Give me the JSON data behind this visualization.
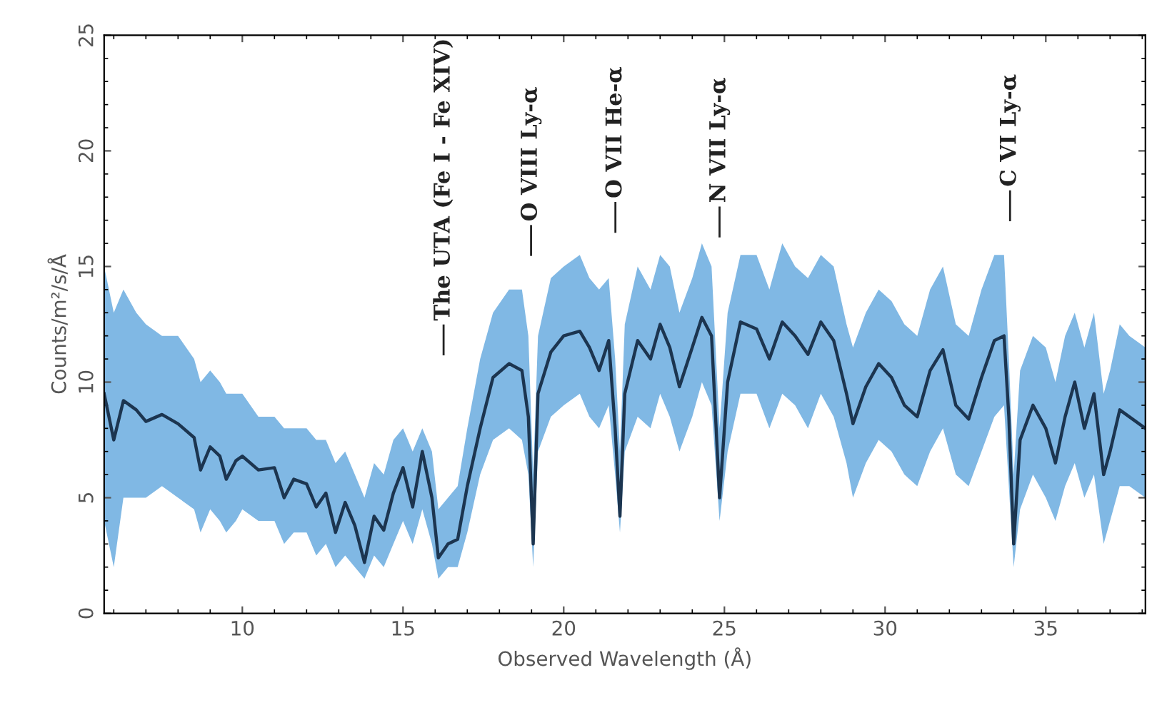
{
  "chart_data": {
    "type": "line",
    "xlabel": "Observed Wavelength (Å)",
    "ylabel": "Counts/m²/s/Å",
    "xlim": [
      5.7,
      38.1
    ],
    "ylim": [
      0,
      25
    ],
    "xticks": [
      10,
      15,
      20,
      25,
      30,
      35
    ],
    "yticks": [
      0,
      5,
      10,
      15,
      20,
      25
    ],
    "grid": false,
    "legend": false,
    "marker": "none",
    "line_style": "solid",
    "series": [
      {
        "color": "#1c3550",
        "x": [
          5.7,
          6.0,
          6.3,
          6.7,
          7.0,
          7.5,
          8.0,
          8.5,
          8.7,
          9.0,
          9.3,
          9.5,
          9.8,
          10.0,
          10.5,
          11.0,
          11.3,
          11.6,
          12.0,
          12.3,
          12.6,
          12.9,
          13.2,
          13.5,
          13.8,
          14.1,
          14.4,
          14.7,
          15.0,
          15.3,
          15.6,
          15.9,
          16.1,
          16.4,
          16.7,
          17.0,
          17.4,
          17.8,
          18.3,
          18.7,
          18.9,
          19.05,
          19.2,
          19.6,
          20.0,
          20.5,
          20.8,
          21.1,
          21.4,
          21.6,
          21.75,
          21.9,
          22.3,
          22.7,
          23.0,
          23.3,
          23.6,
          24.0,
          24.3,
          24.6,
          24.85,
          25.1,
          25.5,
          26.0,
          26.4,
          26.8,
          27.2,
          27.6,
          28.0,
          28.4,
          28.8,
          29.0,
          29.4,
          29.8,
          30.2,
          30.6,
          31.0,
          31.4,
          31.8,
          32.2,
          32.6,
          33.0,
          33.4,
          33.7,
          33.85,
          34.0,
          34.2,
          34.6,
          35.0,
          35.3,
          35.6,
          35.9,
          36.2,
          36.5,
          36.8,
          37.0,
          37.3,
          37.6,
          38.1
        ],
        "values": [
          9.5,
          7.5,
          9.2,
          8.8,
          8.3,
          8.6,
          8.2,
          7.6,
          6.2,
          7.2,
          6.8,
          5.8,
          6.6,
          6.8,
          6.2,
          6.3,
          5.0,
          5.8,
          5.6,
          4.6,
          5.2,
          3.5,
          4.8,
          3.8,
          2.2,
          4.2,
          3.6,
          5.2,
          6.3,
          4.6,
          7.0,
          5.0,
          2.4,
          3.0,
          3.2,
          5.5,
          8.0,
          10.2,
          10.8,
          10.5,
          8.5,
          3.0,
          9.5,
          11.3,
          12.0,
          12.2,
          11.5,
          10.5,
          11.8,
          8.0,
          4.2,
          9.5,
          11.8,
          11.0,
          12.5,
          11.5,
          9.8,
          11.5,
          12.8,
          12.0,
          5.0,
          10.0,
          12.6,
          12.3,
          11.0,
          12.6,
          12.0,
          11.2,
          12.6,
          11.8,
          9.5,
          8.2,
          9.8,
          10.8,
          10.2,
          9.0,
          8.5,
          10.5,
          11.4,
          9.0,
          8.4,
          10.2,
          11.8,
          12.0,
          8.5,
          3.0,
          7.5,
          9.0,
          8.0,
          6.5,
          8.5,
          10.0,
          8.0,
          9.5,
          6.0,
          7.0,
          8.8,
          8.5,
          8.0
        ],
        "lower": [
          4,
          2,
          5,
          5,
          5,
          5.5,
          5,
          4.5,
          3.5,
          4.5,
          4,
          3.5,
          4,
          4.5,
          4,
          4,
          3,
          3.5,
          3.5,
          2.5,
          3,
          2,
          2.5,
          2,
          1.5,
          2.5,
          2,
          3,
          4,
          3,
          4.5,
          3,
          1.5,
          2,
          2,
          3.5,
          6,
          7.5,
          8,
          7.5,
          6,
          2,
          7,
          8.5,
          9,
          9.5,
          8.5,
          8,
          9,
          6,
          3.5,
          7,
          8.5,
          8,
          9.5,
          8.5,
          7,
          8.5,
          10,
          9,
          4,
          7,
          9.5,
          9.5,
          8,
          9.5,
          9,
          8,
          9.5,
          8.5,
          6.5,
          5,
          6.5,
          7.5,
          7,
          6,
          5.5,
          7,
          8,
          6,
          5.5,
          7,
          8.5,
          9,
          5.5,
          2,
          4.5,
          6,
          5,
          4,
          5.5,
          6.5,
          5,
          6,
          3,
          4,
          5.5,
          5.5,
          5
        ],
        "upper": [
          15,
          13,
          14,
          13,
          12.5,
          12,
          12,
          11,
          10,
          10.5,
          10,
          9.5,
          9.5,
          9.5,
          8.5,
          8.5,
          8,
          8,
          8,
          7.5,
          7.5,
          6.5,
          7,
          6,
          5,
          6.5,
          6,
          7.5,
          8,
          7,
          8,
          7,
          4.5,
          5,
          5.5,
          8,
          11,
          13,
          14,
          14,
          12,
          6,
          12,
          14.5,
          15,
          15.5,
          14.5,
          14,
          14.5,
          11,
          7,
          12.5,
          15,
          14,
          15.5,
          15,
          13,
          14.5,
          16,
          15,
          8,
          13,
          15.5,
          15.5,
          14,
          16,
          15,
          14.5,
          15.5,
          15,
          12.5,
          11.5,
          13,
          14,
          13.5,
          12.5,
          12,
          14,
          15,
          12.5,
          12,
          14,
          15.5,
          15.5,
          11,
          6,
          10.5,
          12,
          11.5,
          10,
          12,
          13,
          11.5,
          13,
          9.5,
          10.5,
          12.5,
          12,
          11.5
        ]
      }
    ],
    "annotations": [
      "The UTA (Fe I - Fe XIV)",
      "O VIII Ly-α",
      "O VII He-α",
      "N VII Ly-α",
      "C VI Ly-α"
    ]
  }
}
